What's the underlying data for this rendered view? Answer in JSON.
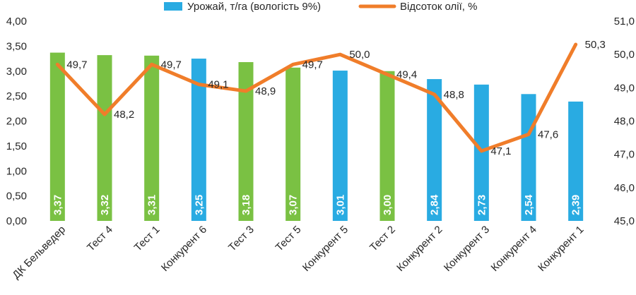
{
  "chart_data": {
    "type": "bar",
    "categories": [
      "ДК Бельведер",
      "Тест 4",
      "Тест 1",
      "Конкурент 6",
      "Тест 3",
      "Тест 5",
      "Конкурент 5",
      "Тест 2",
      "Конкурент 2",
      "Конкурент 3",
      "Конкурент 4",
      "Конкурент 1"
    ],
    "series": [
      {
        "name": "Урожай, т/га (вологість 9%)",
        "type": "bar",
        "axis": "left",
        "values": [
          3.37,
          3.32,
          3.31,
          3.25,
          3.18,
          3.07,
          3.01,
          3.0,
          2.84,
          2.73,
          2.54,
          2.39
        ],
        "labels": [
          "3,37",
          "3,32",
          "3,31",
          "3,25",
          "3,18",
          "3,07",
          "3,01",
          "3,00",
          "2,84",
          "2,73",
          "2,54",
          "2,39"
        ],
        "bar_colors": [
          "#7ac143",
          "#7ac143",
          "#7ac143",
          "#29abe2",
          "#7ac143",
          "#7ac143",
          "#29abe2",
          "#7ac143",
          "#29abe2",
          "#29abe2",
          "#29abe2",
          "#29abe2"
        ]
      },
      {
        "name": "Відсоток олії, %",
        "type": "line",
        "axis": "right",
        "color": "#f07d2a",
        "values": [
          49.7,
          48.2,
          49.7,
          49.1,
          48.9,
          49.7,
          50.0,
          49.4,
          48.8,
          47.1,
          47.6,
          50.3
        ],
        "labels": [
          "49,7",
          "48,2",
          "49,7",
          "49,1",
          "48,9",
          "49,7",
          "50,0",
          "49,4",
          "48,8",
          "47,1",
          "47,6",
          "50,3"
        ]
      }
    ],
    "y_left": {
      "min": 0,
      "max": 4,
      "ticks": [
        "0,00",
        "0,50",
        "1,00",
        "1,50",
        "2,00",
        "2,50",
        "3,00",
        "3,50",
        "4,00"
      ]
    },
    "y_right": {
      "min": 45,
      "max": 51,
      "ticks": [
        "45,0",
        "46,0",
        "47,0",
        "48,0",
        "49,0",
        "50,0",
        "51,0"
      ]
    },
    "legend": {
      "position": "top",
      "items": [
        {
          "label": "Урожай, т/га (вологість 9%)",
          "color": "#29abe2",
          "kind": "bar"
        },
        {
          "label": "Відсоток олії, %",
          "color": "#f07d2a",
          "kind": "line"
        }
      ]
    },
    "grid": false
  }
}
